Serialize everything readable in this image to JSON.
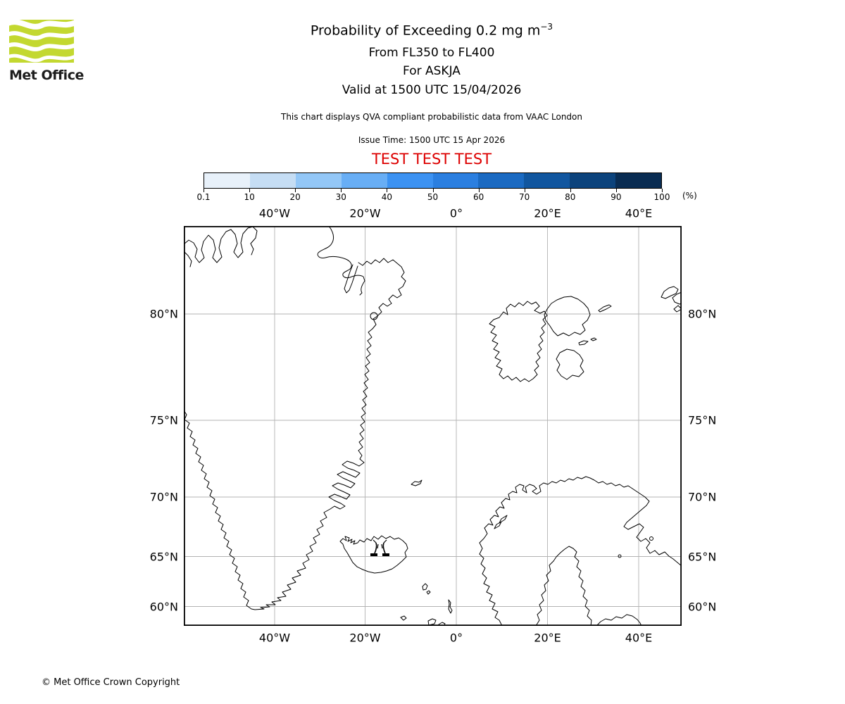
{
  "logo": {
    "brand": "Met Office",
    "green": "#c3d830"
  },
  "header": {
    "title": "Probability of Exceeding 0.2 mg m",
    "title_superscript": "−3",
    "subtitle_flight_levels": "From FL350 to FL400",
    "subtitle_volcano": "For ASKJA",
    "subtitle_valid": "Valid at 1500 UTC 15/04/2026",
    "note": "This chart displays QVA compliant probabilistic data from VAAC London",
    "issue_time": "Issue Time: 1500 UTC 15 Apr 2026",
    "test_banner": "TEST TEST TEST",
    "test_color": "#dd0000"
  },
  "colorbar": {
    "unit_label": "(%)",
    "tick_labels": [
      "0.1",
      "10",
      "20",
      "30",
      "40",
      "50",
      "60",
      "70",
      "80",
      "90",
      "100"
    ],
    "colors": [
      "#e8f1fa",
      "#c5ddf4",
      "#93c7f7",
      "#68aef5",
      "#3c92f2",
      "#2b7fe0",
      "#1b6ac2",
      "#11569f",
      "#0c437c",
      "#092c52"
    ]
  },
  "map": {
    "lon_labels": [
      "40°W",
      "20°W",
      "0°",
      "20°E",
      "40°E"
    ],
    "lat_labels": [
      "80°N",
      "75°N",
      "70°N",
      "65°N",
      "60°N"
    ],
    "grid_color": "#b3b3b3",
    "volcano_name": "ASKJA"
  },
  "footer": {
    "copyright": "© Met Office Crown Copyright"
  },
  "chart_data": {
    "type": "map",
    "title": "Probability of Exceeding 0.2 mg m−3",
    "flight_levels": "FL350 to FL400",
    "volcano": {
      "name": "ASKJA",
      "approx_lat": 65.0,
      "approx_lon": -16.8
    },
    "valid_time": "1500 UTC 15/04/2026",
    "issue_time": "1500 UTC 15 Apr 2026",
    "probability_scale_percent": [
      0.1,
      10,
      20,
      30,
      40,
      50,
      60,
      70,
      80,
      90,
      100
    ],
    "scale_unit": "%",
    "shaded_probability_regions": [],
    "extent": {
      "lon": [
        -60,
        50
      ],
      "lat": [
        58.5,
        82.5
      ]
    },
    "graticule": {
      "lon_lines": [
        -40,
        -20,
        0,
        20,
        40
      ],
      "lat_lines": [
        80,
        75,
        70,
        65,
        60
      ]
    },
    "legend_position": "top",
    "grid": true
  }
}
